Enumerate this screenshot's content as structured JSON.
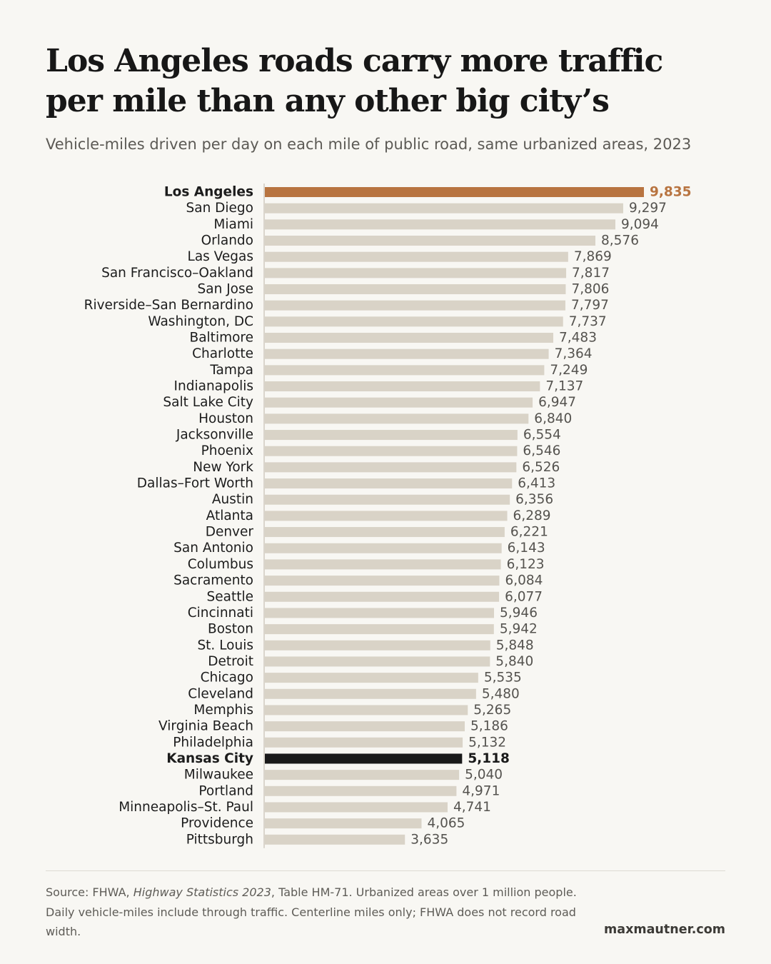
{
  "title": {
    "line1": "Los Angeles roads carry more traffic",
    "line2": "per mile than any other big city’s"
  },
  "subtitle": "Vehicle-miles driven per day on each mile of public road, same urbanized areas, 2023",
  "colors": {
    "default_bar": "#d9d3c7",
    "highlight_primary": "#b87440",
    "highlight_secondary": "#1a1a1a",
    "axis_line": "#cfcac0"
  },
  "chart_data": {
    "type": "bar",
    "orientation": "horizontal",
    "title": "Los Angeles roads carry more traffic per mile than any other big city’s",
    "subtitle": "Vehicle-miles driven per day on each mile of public road, same urbanized areas, 2023",
    "categories": [
      "Los Angeles",
      "San Diego",
      "Miami",
      "Orlando",
      "Las Vegas",
      "San Francisco–Oakland",
      "San Jose",
      "Riverside–San Bernardino",
      "Washington, DC",
      "Baltimore",
      "Charlotte",
      "Tampa",
      "Indianapolis",
      "Salt Lake City",
      "Houston",
      "Jacksonville",
      "Phoenix",
      "New York",
      "Dallas–Fort Worth",
      "Austin",
      "Atlanta",
      "Denver",
      "San Antonio",
      "Columbus",
      "Sacramento",
      "Seattle",
      "Cincinnati",
      "Boston",
      "St. Louis",
      "Detroit",
      "Chicago",
      "Cleveland",
      "Memphis",
      "Virginia Beach",
      "Philadelphia",
      "Kansas City",
      "Milwaukee",
      "Portland",
      "Minneapolis–St. Paul",
      "Providence",
      "Pittsburgh"
    ],
    "values": [
      9835,
      9297,
      9094,
      8576,
      7869,
      7817,
      7806,
      7797,
      7737,
      7483,
      7364,
      7249,
      7137,
      6947,
      6840,
      6554,
      6546,
      6526,
      6413,
      6356,
      6289,
      6221,
      6143,
      6123,
      6084,
      6077,
      5946,
      5942,
      5848,
      5840,
      5535,
      5480,
      5265,
      5186,
      5132,
      5118,
      5040,
      4971,
      4741,
      4065,
      3635
    ],
    "value_labels": [
      "9,835",
      "9,297",
      "9,094",
      "8,576",
      "7,869",
      "7,817",
      "7,806",
      "7,797",
      "7,737",
      "7,483",
      "7,364",
      "7,249",
      "7,137",
      "6,947",
      "6,840",
      "6,554",
      "6,546",
      "6,526",
      "6,413",
      "6,356",
      "6,289",
      "6,221",
      "6,143",
      "6,123",
      "6,084",
      "6,077",
      "5,946",
      "5,942",
      "5,848",
      "5,840",
      "5,535",
      "5,480",
      "5,265",
      "5,186",
      "5,132",
      "5,118",
      "5,040",
      "4,971",
      "4,741",
      "4,065",
      "3,635"
    ],
    "highlights": {
      "Los Angeles": "primary",
      "Kansas City": "secondary"
    },
    "xlim": [
      0,
      10300
    ],
    "xlabel": "",
    "ylabel": "",
    "grid": false,
    "legend": "none"
  },
  "footer": {
    "source_prefix": "Source: FHWA, ",
    "source_publication": "Highway Statistics 2023",
    "source_rest": ", Table HM-71. Urbanized areas over 1 million people. Daily vehicle-miles include through traffic. Centerline miles only; FHWA does not record road width.",
    "credit": "maxmautner.com"
  }
}
